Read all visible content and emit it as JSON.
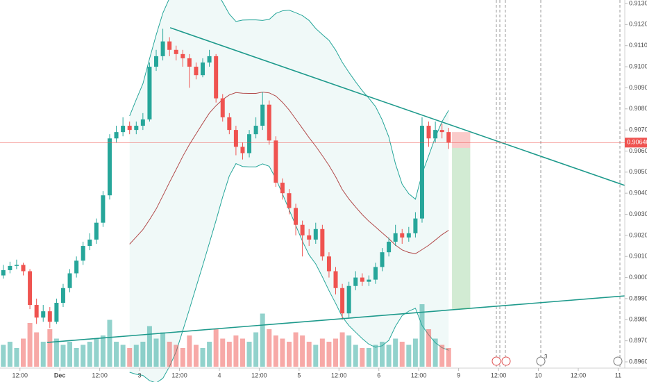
{
  "chart_data": {
    "type": "candlestick",
    "up_color": "#26a69a",
    "down_color": "#ef5350",
    "trend_color": "#1e9a8c",
    "xlim": [
      -18,
      170
    ],
    "ylim": [
      0.896,
      0.913
    ],
    "xticks": [
      {
        "value": -12,
        "label": "12:00"
      },
      {
        "value": 0,
        "label": "Dec"
      },
      {
        "value": 12,
        "label": "12:00"
      },
      {
        "value": 24,
        "label": "3"
      },
      {
        "value": 36,
        "label": "12:00"
      },
      {
        "value": 48,
        "label": "4"
      },
      {
        "value": 60,
        "label": "12:00"
      },
      {
        "value": 72,
        "label": "5"
      },
      {
        "value": 84,
        "label": "12:00"
      },
      {
        "value": 96,
        "label": "6"
      },
      {
        "value": 108,
        "label": "12:00"
      },
      {
        "value": 120,
        "label": "9"
      },
      {
        "value": 132,
        "label": "12:00"
      },
      {
        "value": 144,
        "label": "10"
      },
      {
        "value": 156,
        "label": "12:00"
      },
      {
        "value": 168,
        "label": "11"
      }
    ],
    "yticks": [
      {
        "value": 0.896,
        "label": "0.89600"
      },
      {
        "value": 0.897,
        "label": "0.89700"
      },
      {
        "value": 0.898,
        "label": "0.89800"
      },
      {
        "value": 0.899,
        "label": "0.89900"
      },
      {
        "value": 0.9,
        "label": "0.90000"
      },
      {
        "value": 0.901,
        "label": "0.90100"
      },
      {
        "value": 0.902,
        "label": "0.90200"
      },
      {
        "value": 0.903,
        "label": "0.90300"
      },
      {
        "value": 0.904,
        "label": "0.90400"
      },
      {
        "value": 0.905,
        "label": "0.90500"
      },
      {
        "value": 0.906,
        "label": "0.90600"
      },
      {
        "value": 0.907,
        "label": "0.90700"
      },
      {
        "value": 0.908,
        "label": "0.90800"
      },
      {
        "value": 0.909,
        "label": "0.90900"
      },
      {
        "value": 0.91,
        "label": "0.91000"
      },
      {
        "value": 0.911,
        "label": "0.91100"
      },
      {
        "value": 0.912,
        "label": "0.91200"
      },
      {
        "value": 0.913,
        "label": "0.91300"
      }
    ],
    "last_price": {
      "value": 0.9064,
      "label": "0.90640"
    },
    "event_badge": "3",
    "x": [
      -17,
      -15,
      -13,
      -11,
      -9,
      -7,
      -5,
      -3,
      -1,
      1,
      3,
      5,
      7,
      9,
      11,
      13,
      15,
      17,
      19,
      21,
      23,
      25,
      27,
      29,
      31,
      33,
      35,
      37,
      39,
      41,
      43,
      45,
      47,
      49,
      51,
      53,
      55,
      57,
      59,
      61,
      63,
      65,
      67,
      69,
      71,
      73,
      75,
      77,
      79,
      81,
      83,
      85,
      87,
      89,
      91,
      93,
      95,
      97,
      99,
      101,
      103,
      105,
      107,
      109,
      111,
      113,
      115,
      117
    ],
    "ohlc": [
      [
        0.9001,
        0.9006,
        0.89995,
        0.90035
      ],
      [
        0.90035,
        0.90075,
        0.9002,
        0.90055
      ],
      [
        0.90055,
        0.90085,
        0.9004,
        0.9006
      ],
      [
        0.9006,
        0.9007,
        0.9001,
        0.9003
      ],
      [
        0.9003,
        0.9004,
        0.8985,
        0.8987
      ],
      [
        0.8987,
        0.899,
        0.8978,
        0.8981
      ],
      [
        0.8981,
        0.8987,
        0.8979,
        0.8984
      ],
      [
        0.8984,
        0.8986,
        0.8976,
        0.8979
      ],
      [
        0.8979,
        0.899,
        0.8978,
        0.8988
      ],
      [
        0.8988,
        0.8997,
        0.8986,
        0.8995
      ],
      [
        0.8995,
        0.9004,
        0.8993,
        0.9002
      ],
      [
        0.9002,
        0.901,
        0.9,
        0.9008
      ],
      [
        0.9008,
        0.9017,
        0.9006,
        0.9015
      ],
      [
        0.9015,
        0.9021,
        0.9013,
        0.9018
      ],
      [
        0.9018,
        0.9028,
        0.9016,
        0.9026
      ],
      [
        0.9026,
        0.9041,
        0.9024,
        0.9039
      ],
      [
        0.9039,
        0.9068,
        0.9037,
        0.9066
      ],
      [
        0.9066,
        0.9072,
        0.9064,
        0.9069
      ],
      [
        0.9069,
        0.9076,
        0.9067,
        0.9072
      ],
      [
        0.9072,
        0.9074,
        0.9068,
        0.907
      ],
      [
        0.907,
        0.9074,
        0.9068,
        0.9072
      ],
      [
        0.9072,
        0.9078,
        0.907,
        0.9075
      ],
      [
        0.9075,
        0.9102,
        0.9074,
        0.91
      ],
      [
        0.91,
        0.9108,
        0.9098,
        0.9105
      ],
      [
        0.9105,
        0.9118,
        0.9103,
        0.9112
      ],
      [
        0.9112,
        0.9114,
        0.9105,
        0.9108
      ],
      [
        0.9108,
        0.911,
        0.9103,
        0.9106
      ],
      [
        0.9106,
        0.9108,
        0.91,
        0.9104
      ],
      [
        0.9104,
        0.9106,
        0.909,
        0.91
      ],
      [
        0.91,
        0.9102,
        0.9094,
        0.9096
      ],
      [
        0.9096,
        0.9104,
        0.9095,
        0.9102
      ],
      [
        0.9102,
        0.9108,
        0.91,
        0.9105
      ],
      [
        0.9105,
        0.9106,
        0.9083,
        0.9085
      ],
      [
        0.9085,
        0.9087,
        0.9074,
        0.9076
      ],
      [
        0.9076,
        0.9078,
        0.9068,
        0.907
      ],
      [
        0.907,
        0.9072,
        0.9058,
        0.9062
      ],
      [
        0.9062,
        0.9064,
        0.9056,
        0.9059
      ],
      [
        0.9059,
        0.907,
        0.9057,
        0.9068
      ],
      [
        0.9068,
        0.9076,
        0.9066,
        0.9072
      ],
      [
        0.9072,
        0.9088,
        0.907,
        0.9082
      ],
      [
        0.9082,
        0.9084,
        0.9063,
        0.9065
      ],
      [
        0.9065,
        0.9067,
        0.9043,
        0.9045
      ],
      [
        0.9045,
        0.9047,
        0.9037,
        0.904
      ],
      [
        0.904,
        0.9042,
        0.903,
        0.9033
      ],
      [
        0.9033,
        0.9035,
        0.902,
        0.9025
      ],
      [
        0.9025,
        0.9027,
        0.901,
        0.902
      ],
      [
        0.902,
        0.9023,
        0.9015,
        0.9018
      ],
      [
        0.9018,
        0.9026,
        0.9016,
        0.9023
      ],
      [
        0.9023,
        0.9025,
        0.9008,
        0.901
      ],
      [
        0.901,
        0.9012,
        0.9,
        0.9003
      ],
      [
        0.9003,
        0.9005,
        0.8992,
        0.8995
      ],
      [
        0.8995,
        0.8997,
        0.898,
        0.8983
      ],
      [
        0.8983,
        0.8998,
        0.8981,
        0.8996
      ],
      [
        0.8996,
        0.9003,
        0.8994,
        0.9
      ],
      [
        0.9,
        0.9002,
        0.8996,
        0.8998
      ],
      [
        0.8998,
        0.9001,
        0.8996,
        0.8999
      ],
      [
        0.8999,
        0.9007,
        0.8997,
        0.9005
      ],
      [
        0.9005,
        0.9014,
        0.9003,
        0.9012
      ],
      [
        0.9012,
        0.9019,
        0.901,
        0.9017
      ],
      [
        0.9017,
        0.9025,
        0.9015,
        0.9021
      ],
      [
        0.9021,
        0.9023,
        0.9016,
        0.9019
      ],
      [
        0.9019,
        0.9024,
        0.9017,
        0.9021
      ],
      [
        0.9021,
        0.9031,
        0.9019,
        0.9028
      ],
      [
        0.9028,
        0.9076,
        0.9026,
        0.9072
      ],
      [
        0.9072,
        0.9074,
        0.9062,
        0.9066
      ],
      [
        0.9066,
        0.9074,
        0.9064,
        0.907
      ],
      [
        0.907,
        0.9073,
        0.9066,
        0.9069
      ],
      [
        0.9069,
        0.9071,
        0.9061,
        0.9064
      ]
    ],
    "volume": [
      35,
      40,
      30,
      45,
      70,
      55,
      40,
      60,
      45,
      35,
      40,
      30,
      35,
      40,
      45,
      50,
      75,
      40,
      35,
      30,
      35,
      40,
      65,
      45,
      55,
      40,
      35,
      30,
      50,
      35,
      30,
      40,
      60,
      45,
      40,
      50,
      45,
      40,
      55,
      85,
      60,
      50,
      45,
      40,
      55,
      50,
      40,
      35,
      45,
      40,
      45,
      55,
      50,
      35,
      30,
      30,
      35,
      40,
      35,
      45,
      40,
      35,
      45,
      100,
      60,
      45,
      35,
      30
    ],
    "trendlines": [
      {
        "x": [
          33.2,
          170
        ],
        "y": [
          0.91185,
          0.90437
        ]
      },
      {
        "x": [
          -3.8,
          170
        ],
        "y": [
          0.89692,
          0.89913
        ]
      }
    ],
    "position": {
      "x": [
        118,
        123.5
      ],
      "entry": 0.90615,
      "stop": 0.9069,
      "target": 0.8985
    }
  }
}
